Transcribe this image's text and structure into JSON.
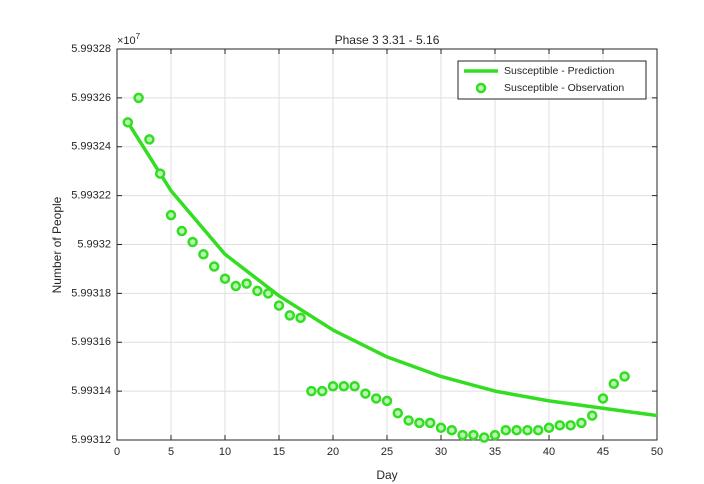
{
  "chart_data": {
    "type": "line",
    "title": "Phase 3 3.31 - 5.16",
    "xlabel": "Day",
    "ylabel": "Number of People",
    "y_exponent_base": "×10",
    "y_exponent": 7,
    "xlim": [
      0,
      50
    ],
    "xticks": [
      0,
      5,
      10,
      15,
      20,
      25,
      30,
      35,
      40,
      45,
      50
    ],
    "ylim": [
      5.99312,
      5.99328
    ],
    "yticks": [
      5.99312,
      5.99314,
      5.99316,
      5.99318,
      5.9932,
      5.99322,
      5.99324,
      5.99326,
      5.99328
    ],
    "grid": true,
    "legend": "top-right",
    "series": [
      {
        "name": "Susceptible - Prediction",
        "color": "#33dd22",
        "style": "line",
        "x": [
          1,
          5,
          10,
          15,
          20,
          25,
          30,
          35,
          40,
          45,
          50
        ],
        "values": [
          5.99325,
          5.993222,
          5.993196,
          5.993179,
          5.993165,
          5.993154,
          5.993146,
          5.99314,
          5.993136,
          5.993133,
          5.99313
        ]
      },
      {
        "name": "Susceptible - Observation",
        "color": "#33dd22",
        "style": "markers",
        "x": [
          1,
          2,
          3,
          4,
          5,
          6,
          7,
          8,
          9,
          10,
          11,
          12,
          13,
          14,
          15,
          16,
          17,
          18,
          19,
          20,
          21,
          22,
          23,
          24,
          25,
          26,
          27,
          28,
          29,
          30,
          31,
          32,
          33,
          34,
          35,
          36,
          37,
          38,
          39,
          40,
          41,
          42,
          43,
          44,
          45,
          46,
          47
        ],
        "values": [
          5.99325,
          5.99326,
          5.993243,
          5.993229,
          5.993212,
          5.9932055,
          5.993201,
          5.993196,
          5.993191,
          5.993186,
          5.993183,
          5.993184,
          5.993181,
          5.99318,
          5.993175,
          5.993171,
          5.99317,
          5.99314,
          5.99314,
          5.993142,
          5.993142,
          5.993142,
          5.993139,
          5.993137,
          5.993136,
          5.993131,
          5.993128,
          5.993127,
          5.993127,
          5.993125,
          5.993124,
          5.993122,
          5.993122,
          5.993121,
          5.993122,
          5.993124,
          5.993124,
          5.993124,
          5.993124,
          5.993125,
          5.993126,
          5.993126,
          5.993127,
          5.99313,
          5.993137,
          5.993143,
          5.993146
        ]
      }
    ]
  }
}
